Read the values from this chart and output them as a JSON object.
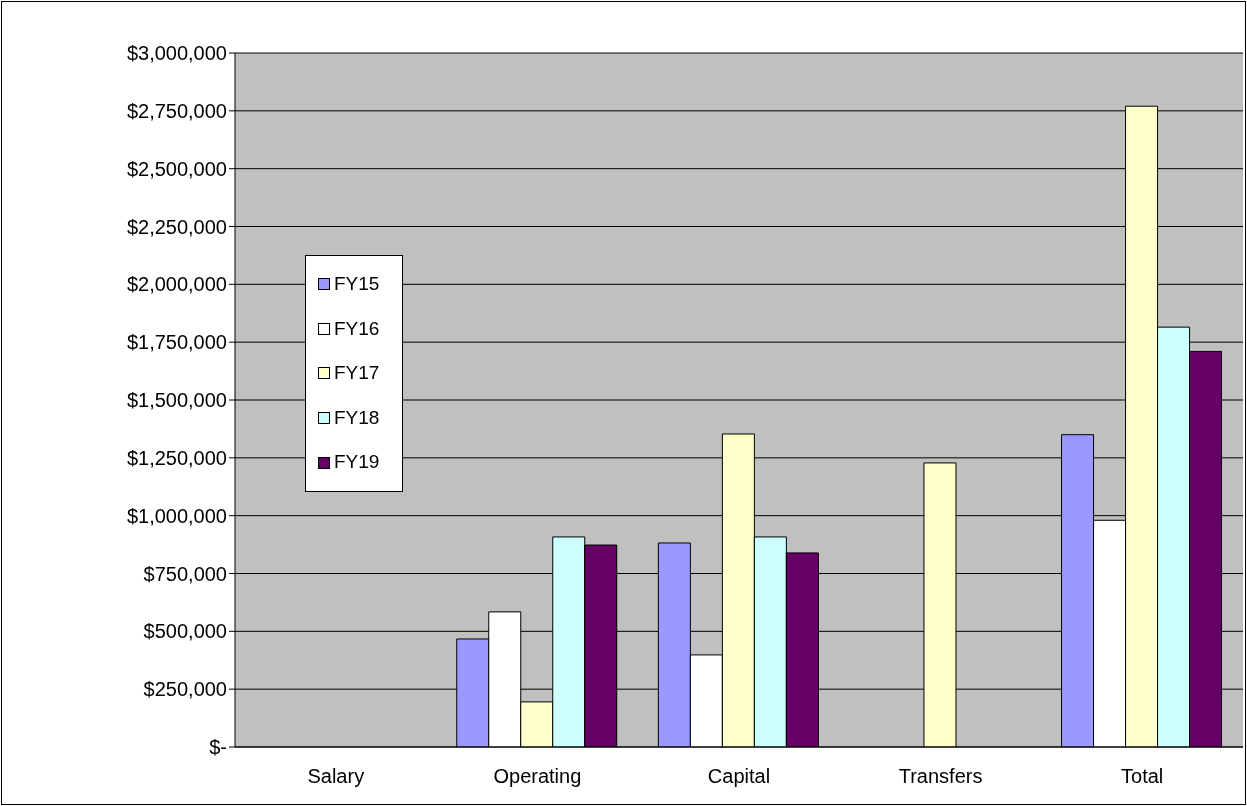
{
  "chart_data": {
    "type": "bar",
    "categories": [
      "Salary",
      "Operating",
      "Capital",
      "Transfers",
      "Total"
    ],
    "series": [
      {
        "name": "FY15",
        "color": "#9999ff",
        "values": [
          null,
          467000,
          882000,
          null,
          1350000
        ]
      },
      {
        "name": "FY16",
        "color": "#ffffff",
        "values": [
          null,
          584000,
          398000,
          null,
          980000
        ]
      },
      {
        "name": "FY17",
        "color": "#ffffcc",
        "values": [
          null,
          195000,
          1353000,
          1228000,
          2770000
        ]
      },
      {
        "name": "FY18",
        "color": "#ccffff",
        "values": [
          null,
          908000,
          908000,
          null,
          1815000
        ]
      },
      {
        "name": "FY19",
        "color": "#660066",
        "values": [
          null,
          873000,
          839000,
          null,
          1710000
        ]
      }
    ],
    "ylim": [
      0,
      3000000
    ],
    "yticks": [
      {
        "value": 0,
        "label": "$-"
      },
      {
        "value": 250000,
        "label": "$250,000"
      },
      {
        "value": 500000,
        "label": "$500,000"
      },
      {
        "value": 750000,
        "label": "$750,000"
      },
      {
        "value": 1000000,
        "label": "$1,000,000"
      },
      {
        "value": 1250000,
        "label": "$1,250,000"
      },
      {
        "value": 1500000,
        "label": "$1,500,000"
      },
      {
        "value": 1750000,
        "label": "$1,750,000"
      },
      {
        "value": 2000000,
        "label": "$2,000,000"
      },
      {
        "value": 2250000,
        "label": "$2,250,000"
      },
      {
        "value": 2500000,
        "label": "$2,500,000"
      },
      {
        "value": 2750000,
        "label": "$2,750,000"
      },
      {
        "value": 3000000,
        "label": "$3,000,000"
      }
    ],
    "grid": "y",
    "legend": "left"
  }
}
